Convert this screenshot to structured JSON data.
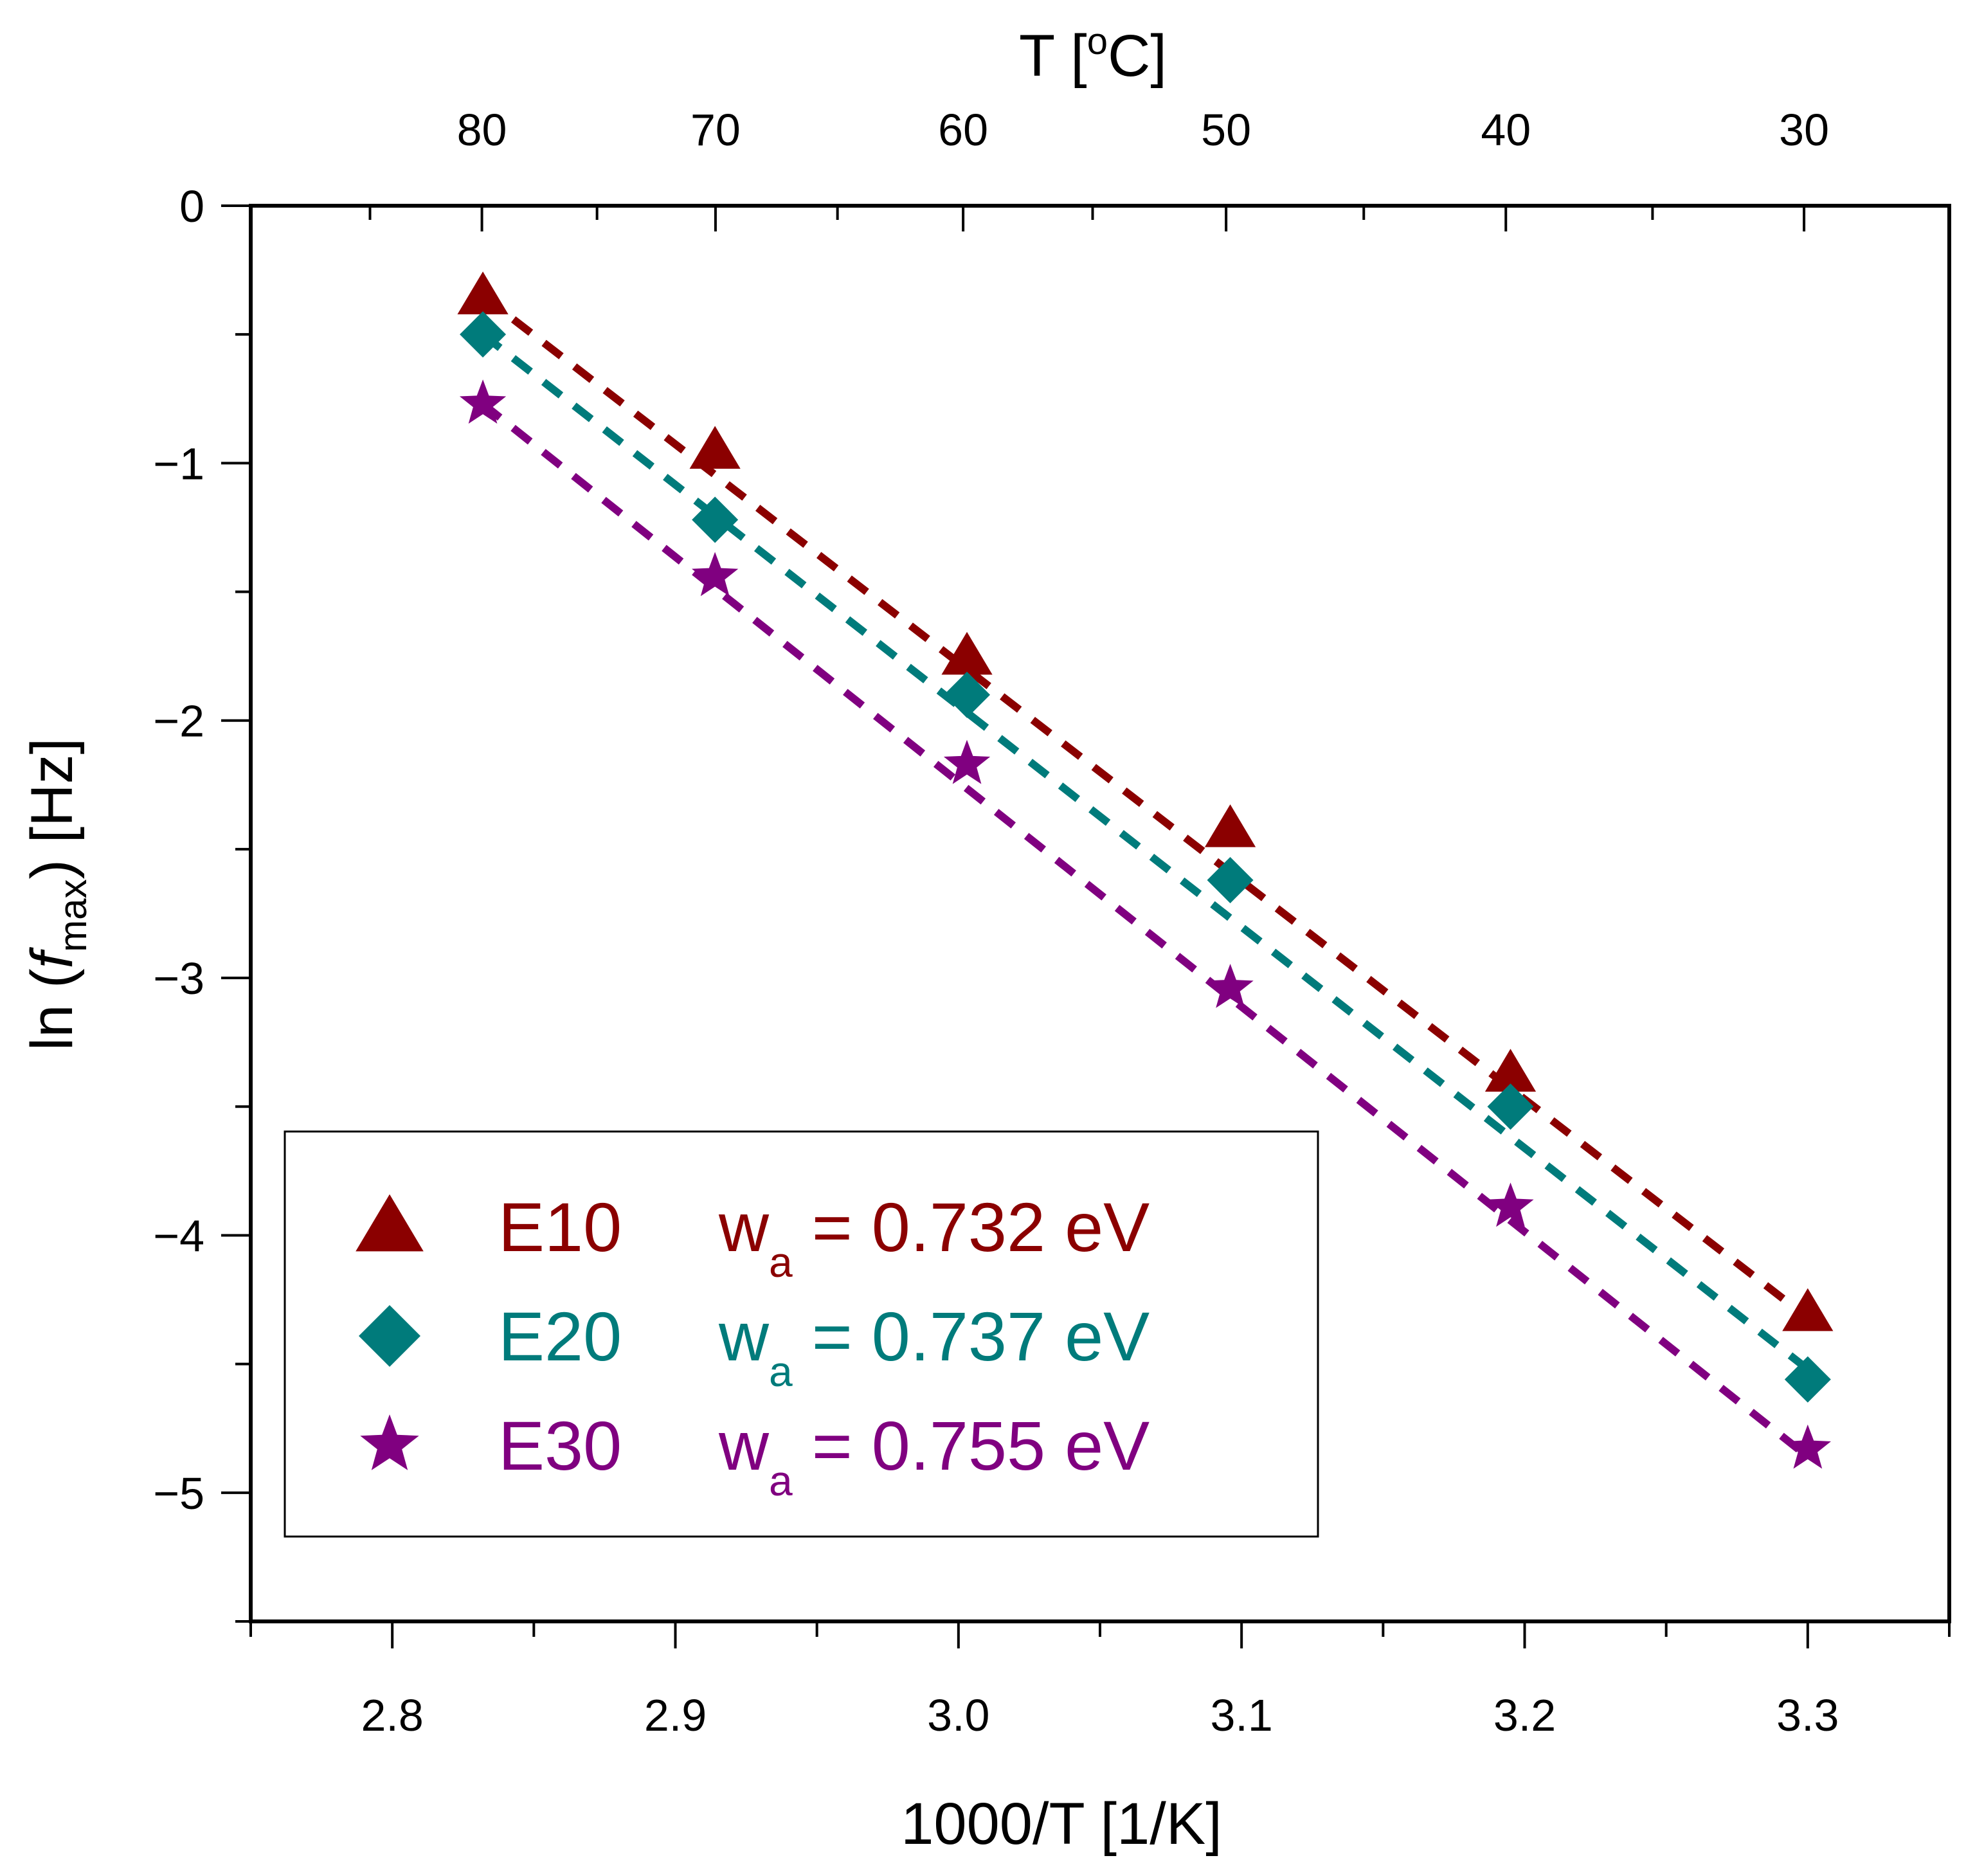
{
  "chart_data": {
    "type": "scatter",
    "xlabel": "1000/T [1/K]",
    "ylabel_parts": {
      "prefix": "ln (",
      "var": "f",
      "sub": "max",
      "suffix": ") [Hz]"
    },
    "top_xlabel_parts": {
      "prefix": "T [",
      "sup": "o",
      "suffix": "C]"
    },
    "xlim": [
      2.75,
      3.35
    ],
    "ylim": [
      -5.5,
      0
    ],
    "x_ticks": [
      2.8,
      2.9,
      3.0,
      3.1,
      3.2,
      3.3
    ],
    "x_tick_labels": [
      "2.8",
      "2.9",
      "3.0",
      "3.1",
      "3.2",
      "3.3"
    ],
    "y_ticks": [
      0,
      -1,
      -2,
      -3,
      -4,
      -5
    ],
    "y_tick_labels": [
      "0",
      "−1",
      "−2",
      "−3",
      "−4",
      "−5"
    ],
    "top_ticks": [
      80,
      70,
      60,
      50,
      40,
      30
    ],
    "top_tick_labels": [
      "80",
      "70",
      "60",
      "50",
      "40",
      "30"
    ],
    "legend_position": "lower-left",
    "fit_lines": "dashed",
    "series": [
      {
        "name": "E10",
        "marker": "triangle",
        "color": "#8B0000",
        "eq_symbol": "w",
        "eq_sub": "a",
        "eq_rest": " = 0.732 eV",
        "x": [
          2.832,
          2.914,
          3.003,
          3.096,
          3.195,
          3.3
        ],
        "y": [
          -0.35,
          -0.95,
          -1.75,
          -2.42,
          -3.37,
          -4.3
        ],
        "fit": [
          [
            2.832,
            -0.35
          ],
          [
            3.3,
            -4.32
          ]
        ]
      },
      {
        "name": "E20",
        "marker": "diamond",
        "color": "#007B7B",
        "eq_symbol": "w",
        "eq_sub": "a",
        "eq_rest": " = 0.737 eV",
        "x": [
          2.832,
          2.914,
          3.003,
          3.096,
          3.195,
          3.3
        ],
        "y": [
          -0.5,
          -1.22,
          -1.9,
          -2.62,
          -3.5,
          -4.56
        ],
        "fit": [
          [
            2.832,
            -0.5
          ],
          [
            3.3,
            -4.52
          ]
        ]
      },
      {
        "name": "E30",
        "marker": "star",
        "color": "#800080",
        "eq_symbol": "w",
        "eq_sub": "a",
        "eq_rest": " = 0.755 eV",
        "x": [
          2.832,
          2.914,
          3.003,
          3.096,
          3.195,
          3.3
        ],
        "y": [
          -0.77,
          -1.44,
          -2.17,
          -3.04,
          -3.89,
          -4.83
        ],
        "fit": [
          [
            2.832,
            -0.77
          ],
          [
            3.3,
            -4.86
          ]
        ]
      }
    ]
  }
}
